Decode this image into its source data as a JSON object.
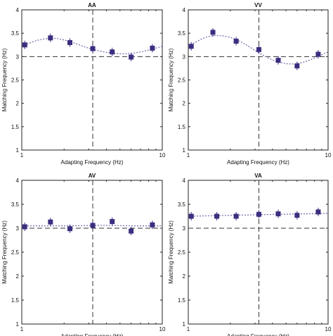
{
  "chart_data": [
    {
      "type": "scatter",
      "title": "AA",
      "xlabel": "Adapting Frequency (Hz)",
      "ylabel": "Matching Frequency (Hz)",
      "xscale": "log",
      "xlim": [
        1,
        10
      ],
      "ylim": [
        1,
        4
      ],
      "xticks": [
        "1",
        "10"
      ],
      "yticks": [
        "1",
        "1.5",
        "2",
        "2.5",
        "3",
        "3.5",
        "4"
      ],
      "reference_hline": 3,
      "reference_vline": 3.2,
      "grid": false,
      "x": [
        1.05,
        1.6,
        2.2,
        3.2,
        4.4,
        6.0,
        8.5
      ],
      "y": [
        3.25,
        3.4,
        3.3,
        3.17,
        3.1,
        2.99,
        3.18
      ],
      "fit": [
        [
          1.0,
          3.22
        ],
        [
          1.3,
          3.35
        ],
        [
          1.7,
          3.39
        ],
        [
          2.2,
          3.32
        ],
        [
          3.0,
          3.18
        ],
        [
          4.0,
          3.09
        ],
        [
          5.0,
          3.06
        ],
        [
          6.0,
          3.07
        ],
        [
          7.0,
          3.1
        ],
        [
          8.0,
          3.14
        ],
        [
          10.0,
          3.22
        ]
      ]
    },
    {
      "type": "scatter",
      "title": "VV",
      "xlabel": "Adapting Frequency (Hz)",
      "ylabel": "Matching Frequency (Hz)",
      "xscale": "log",
      "xlim": [
        1,
        10
      ],
      "ylim": [
        1,
        4
      ],
      "xticks": [
        "1",
        "10"
      ],
      "yticks": [
        "1",
        "1.5",
        "2",
        "2.5",
        "3",
        "3.5",
        "4"
      ],
      "reference_hline": 3,
      "reference_vline": 3.2,
      "grid": false,
      "x": [
        1.05,
        1.5,
        2.2,
        3.2,
        4.4,
        6.0,
        8.5
      ],
      "y": [
        3.22,
        3.52,
        3.33,
        3.15,
        2.92,
        2.8,
        3.05
      ],
      "fit": [
        [
          1.0,
          3.22
        ],
        [
          1.3,
          3.4
        ],
        [
          1.6,
          3.45
        ],
        [
          2.0,
          3.41
        ],
        [
          2.5,
          3.28
        ],
        [
          3.2,
          3.08
        ],
        [
          4.0,
          2.93
        ],
        [
          5.0,
          2.85
        ],
        [
          6.0,
          2.85
        ],
        [
          7.0,
          2.9
        ],
        [
          8.0,
          2.97
        ],
        [
          10.0,
          3.1
        ]
      ]
    },
    {
      "type": "scatter",
      "title": "AV",
      "xlabel": "Adapting Frequency (Hz)",
      "ylabel": "Matching Frequency (Hz)",
      "xscale": "log",
      "xlim": [
        1,
        10
      ],
      "ylim": [
        1,
        4
      ],
      "xticks": [
        "1",
        "10"
      ],
      "yticks": [
        "1",
        "1.5",
        "2",
        "2.5",
        "3",
        "3.5",
        "4"
      ],
      "reference_hline": 3,
      "reference_vline": 3.2,
      "grid": false,
      "x": [
        1.05,
        1.6,
        2.2,
        3.2,
        4.4,
        6.0,
        8.5
      ],
      "y": [
        3.03,
        3.13,
        2.99,
        3.06,
        3.14,
        2.94,
        3.07
      ],
      "fit": [
        [
          1.0,
          3.05
        ],
        [
          2.0,
          3.05
        ],
        [
          4.0,
          3.06
        ],
        [
          6.0,
          3.05
        ],
        [
          10.0,
          3.05
        ]
      ]
    },
    {
      "type": "scatter",
      "title": "VA",
      "xlabel": "Adapting Frequency (Hz)",
      "ylabel": "Matching Frequency (Hz)",
      "xscale": "log",
      "xlim": [
        1,
        10
      ],
      "ylim": [
        1,
        4
      ],
      "xticks": [
        "1",
        "10"
      ],
      "yticks": [
        "1",
        "1.5",
        "2",
        "2.5",
        "3",
        "3.5",
        "4"
      ],
      "reference_hline": 3,
      "reference_vline": 3.2,
      "grid": false,
      "x": [
        1.05,
        1.6,
        2.2,
        3.2,
        4.4,
        6.0,
        8.5
      ],
      "y": [
        3.25,
        3.25,
        3.25,
        3.29,
        3.3,
        3.27,
        3.34
      ],
      "fit": [
        [
          1.0,
          3.25
        ],
        [
          3.0,
          3.28
        ],
        [
          10.0,
          3.31
        ]
      ]
    }
  ],
  "colors": {
    "marker": "#3a2e80",
    "fit_line": "#6a6aa8",
    "reference_line": "#333333",
    "axis": "#222222"
  }
}
